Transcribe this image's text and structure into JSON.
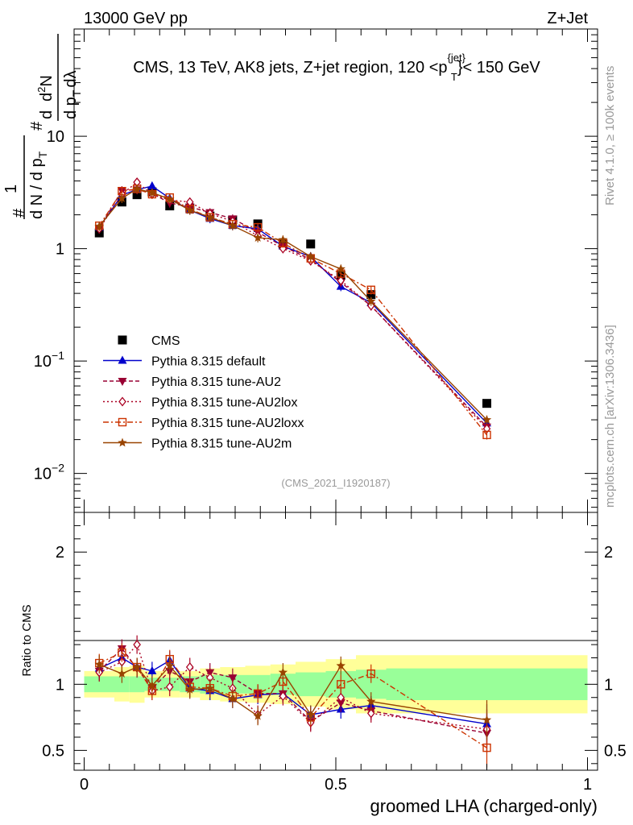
{
  "header": {
    "left": "13000 GeV pp",
    "right": "Z+Jet"
  },
  "side_labels": {
    "rivet": "Rivet 4.1.0, ≥ 100k events",
    "mcplots": "mcplots.cern.ch [arXiv:1306.3436]"
  },
  "colors": {
    "CMS": "#000000",
    "default": "#0000cc",
    "AU2": "#990033",
    "AU2lox": "#aa0022",
    "AU2loxx": "#cc3300",
    "AU2m": "#994400",
    "band_inner": "#99ff99",
    "band_outer": "#ffff99"
  },
  "chart_data": [
    {
      "type": "line",
      "title": "CMS, 13 TeV, AK8 jets, Z+jet region, 120 <p_T^{jet}< 150 GeV",
      "title_parts": [
        "CMS, 13 TeV, AK8 jets, Z+jet region, 120 <p",
        "{jet}",
        "T",
        "}< 150 GeV"
      ],
      "analysis_tag": "(CMS_2021_I1920187)",
      "ylabel_parts": [
        "#",
        "1",
        "d N / d p",
        "T",
        "#",
        "d",
        "2",
        "N",
        "d p",
        "T",
        "dλ"
      ],
      "yscale": "log",
      "ylim": [
        0.0045,
        90
      ],
      "xlim": [
        -0.02,
        1.02
      ],
      "yticks": [
        {
          "v": 0.01,
          "base": "10",
          "exp": "−2"
        },
        {
          "v": 0.1,
          "base": "10",
          "exp": "−1"
        },
        {
          "v": 1,
          "base": "1",
          "exp": ""
        },
        {
          "v": 10,
          "base": "10",
          "exp": ""
        }
      ],
      "x": [
        0.03,
        0.075,
        0.105,
        0.135,
        0.17,
        0.21,
        0.25,
        0.295,
        0.345,
        0.395,
        0.45,
        0.51,
        0.57,
        0.8
      ],
      "x_edges": [
        0,
        0.06,
        0.09,
        0.12,
        0.15,
        0.19,
        0.23,
        0.27,
        0.32,
        0.37,
        0.42,
        0.48,
        0.54,
        0.6,
        1.0
      ],
      "legend": {
        "position": "center-left"
      },
      "series": [
        {
          "key": "CMS",
          "name": "CMS",
          "marker": "square",
          "values": [
            1.38,
            2.6,
            3.02,
            3.2,
            2.4,
            2.3,
            1.95,
            1.8,
            1.66,
            1.1,
            1.1,
            0.58,
            0.39,
            0.042
          ]
        },
        {
          "key": "default",
          "name": "Pythia 8.315 default",
          "marker": "triangle-up",
          "dash": "",
          "values": [
            1.55,
            3.0,
            3.35,
            3.6,
            2.8,
            2.2,
            1.85,
            1.6,
            1.5,
            1.05,
            0.85,
            0.46,
            0.33,
            0.028
          ]
        },
        {
          "key": "AU2",
          "name": "Pythia 8.315 tune-AU2",
          "marker": "triangle-down",
          "dash": "5,3",
          "values": [
            1.52,
            3.3,
            3.35,
            3.1,
            2.55,
            2.35,
            2.1,
            1.85,
            1.4,
            1.05,
            0.8,
            0.5,
            0.31,
            0.026
          ]
        },
        {
          "key": "AU2lox",
          "name": "Pythia 8.315 tune-AU2lox",
          "marker": "diamond",
          "dash": "2,3",
          "values": [
            1.5,
            3.05,
            3.9,
            3.05,
            2.7,
            2.6,
            2.05,
            1.75,
            1.3,
            1.0,
            0.78,
            0.52,
            0.31,
            0.025
          ]
        },
        {
          "key": "AU2loxx",
          "name": "Pythia 8.315 tune-AU2loxx",
          "marker": "square-open",
          "dash": "7,3,2,3",
          "values": [
            1.6,
            3.25,
            3.4,
            3.05,
            2.85,
            2.25,
            1.9,
            1.65,
            1.55,
            1.12,
            0.82,
            0.6,
            0.43,
            0.022
          ]
        },
        {
          "key": "AU2m",
          "name": "Pythia 8.315 tune-AU2m",
          "marker": "star",
          "dash": "",
          "values": [
            1.58,
            2.8,
            3.4,
            3.15,
            2.75,
            2.2,
            1.9,
            1.6,
            1.25,
            1.2,
            0.85,
            0.66,
            0.34,
            0.03
          ]
        }
      ]
    },
    {
      "type": "line",
      "title": "",
      "xlabel": "groomed LHA (charged-only)",
      "ylabel": "Ratio to CMS",
      "xlim": [
        -0.02,
        1.02
      ],
      "ylim": [
        0.35,
        2.3
      ],
      "xticks": [
        {
          "v": 0,
          "label": "0"
        },
        {
          "v": 0.5,
          "label": "0.5"
        },
        {
          "v": 1,
          "label": "1"
        }
      ],
      "yticks": [
        {
          "v": 0.5,
          "label": "0.5"
        },
        {
          "v": 1,
          "label": "1"
        },
        {
          "v": 2,
          "label": "2"
        }
      ],
      "band_inner_halfwidth": [
        0.06,
        0.06,
        0.06,
        0.05,
        0.05,
        0.06,
        0.07,
        0.07,
        0.07,
        0.08,
        0.09,
        0.1,
        0.11,
        0.12
      ],
      "band_outer_halfwidth": [
        0.1,
        0.13,
        0.14,
        0.1,
        0.1,
        0.1,
        0.12,
        0.13,
        0.14,
        0.15,
        0.17,
        0.19,
        0.22,
        0.22
      ],
      "series": [
        {
          "key": "default",
          "values": [
            1.12,
            1.2,
            1.13,
            1.1,
            1.18,
            0.97,
            0.95,
            0.89,
            0.92,
            0.93,
            0.77,
            0.81,
            0.84,
            0.7
          ]
        },
        {
          "key": "AU2",
          "values": [
            1.1,
            1.27,
            1.12,
            0.97,
            1.1,
            1.02,
            1.09,
            1.05,
            0.93,
            0.93,
            0.72,
            0.86,
            0.8,
            0.63
          ]
        },
        {
          "key": "AU2lox",
          "values": [
            1.09,
            1.17,
            1.3,
            0.95,
            0.98,
            1.13,
            1.05,
            0.97,
            0.77,
            0.91,
            0.71,
            0.9,
            0.78,
            0.66
          ]
        },
        {
          "key": "AU2loxx",
          "values": [
            1.16,
            1.24,
            1.13,
            0.95,
            1.19,
            0.98,
            0.97,
            0.91,
            0.93,
            1.02,
            0.75,
            1.0,
            1.08,
            0.52
          ]
        },
        {
          "key": "AU2m",
          "values": [
            1.15,
            1.08,
            1.13,
            0.99,
            1.14,
            0.96,
            0.97,
            0.89,
            0.76,
            1.09,
            0.77,
            1.14,
            0.87,
            0.73
          ]
        }
      ]
    }
  ]
}
